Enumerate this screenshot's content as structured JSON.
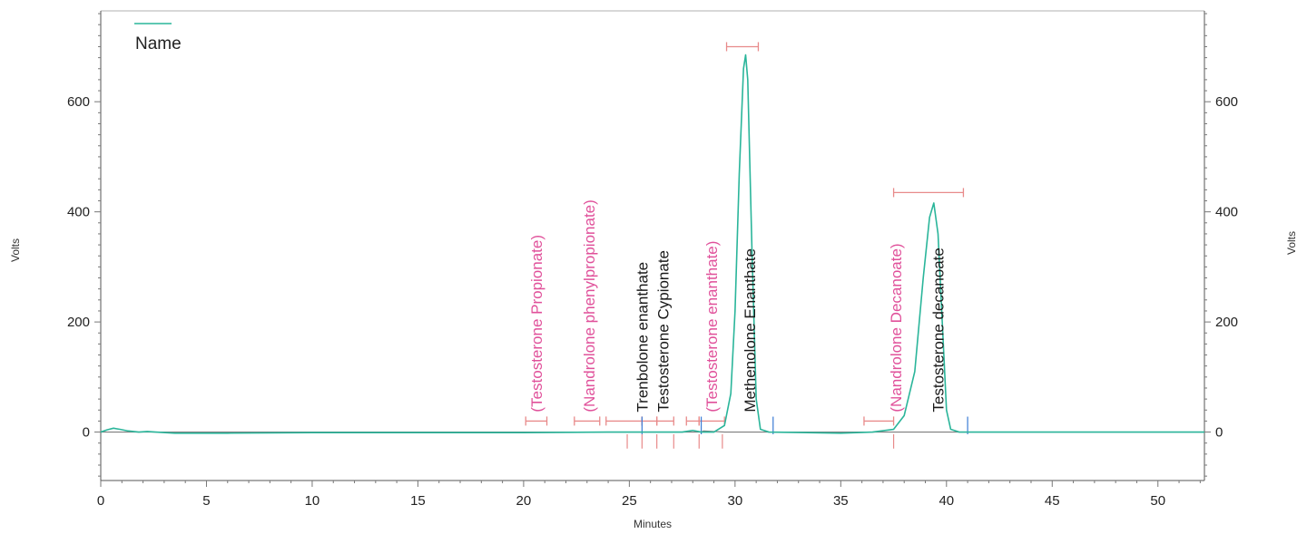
{
  "chart_data": {
    "type": "line",
    "title": "",
    "xlabel": "Minutes",
    "ylabel": "Volts",
    "ylabel_right": "Volts",
    "xlim": [
      0,
      52.2
    ],
    "ylim": [
      -88,
      765
    ],
    "x_ticks": [
      0,
      5,
      10,
      15,
      20,
      25,
      30,
      35,
      40,
      45,
      50
    ],
    "y_ticks": [
      0,
      200,
      400,
      600
    ],
    "grid": false,
    "legend": {
      "placement": "top-left",
      "entries": [
        {
          "label": "Name",
          "color": "#2ab59a"
        }
      ]
    },
    "series": [
      {
        "name": "Name",
        "color": "#2ab59a",
        "points": [
          [
            0.0,
            0
          ],
          [
            0.3,
            4
          ],
          [
            0.6,
            7
          ],
          [
            0.9,
            5
          ],
          [
            1.3,
            2
          ],
          [
            1.8,
            0
          ],
          [
            2.2,
            1
          ],
          [
            2.6,
            0
          ],
          [
            3.5,
            -2
          ],
          [
            6,
            -2
          ],
          [
            10,
            -1
          ],
          [
            15,
            -1
          ],
          [
            20,
            -1
          ],
          [
            24,
            0
          ],
          [
            27.5,
            0
          ],
          [
            28.0,
            3
          ],
          [
            28.4,
            0
          ],
          [
            29.0,
            0
          ],
          [
            29.5,
            12
          ],
          [
            29.8,
            70
          ],
          [
            30.0,
            220
          ],
          [
            30.2,
            470
          ],
          [
            30.4,
            660
          ],
          [
            30.5,
            685
          ],
          [
            30.6,
            640
          ],
          [
            30.8,
            330
          ],
          [
            31.0,
            60
          ],
          [
            31.2,
            5
          ],
          [
            31.6,
            0
          ],
          [
            35,
            -2
          ],
          [
            36.5,
            0
          ],
          [
            37.5,
            5
          ],
          [
            38.0,
            30
          ],
          [
            38.5,
            110
          ],
          [
            38.9,
            280
          ],
          [
            39.2,
            390
          ],
          [
            39.4,
            416
          ],
          [
            39.6,
            360
          ],
          [
            39.8,
            200
          ],
          [
            40.0,
            40
          ],
          [
            40.2,
            5
          ],
          [
            40.6,
            0
          ],
          [
            45,
            0
          ],
          [
            52.2,
            0
          ]
        ]
      }
    ],
    "secondary_series": [
      {
        "name": "",
        "color": "#7d7d7d",
        "points": [
          [
            0.0,
            0
          ],
          [
            28.4,
            0
          ],
          [
            28.5,
            2
          ],
          [
            29.5,
            0
          ],
          [
            52.2,
            0
          ]
        ]
      }
    ],
    "annotations": [
      {
        "text": "(Testosterone Propionate)",
        "x": 20.6,
        "color": "#e0509a"
      },
      {
        "text": "(Nandrolone phenylpropionate)",
        "x": 23.1,
        "color": "#e0509a"
      },
      {
        "text": "Trenbolone enanthate",
        "x": 25.6,
        "color": "#1a1a1a"
      },
      {
        "text": "Testosterone Cypionate",
        "x": 26.6,
        "color": "#1a1a1a"
      },
      {
        "text": "(Testosterone enanthate)",
        "x": 28.9,
        "color": "#e0509a"
      },
      {
        "text": "Methenolone Enanthate",
        "x": 30.7,
        "color": "#1a1a1a"
      },
      {
        "text": "(Nandrolone Decanoate)",
        "x": 37.6,
        "color": "#e0509a"
      },
      {
        "text": "Testosterone decanoate",
        "x": 39.6,
        "color": "#1a1a1a"
      }
    ],
    "integration_ranges": [
      {
        "start": 20.1,
        "end": 21.1,
        "y": 20
      },
      {
        "start": 22.4,
        "end": 23.6,
        "y": 20
      },
      {
        "start": 23.9,
        "end": 25.6,
        "y": 20
      },
      {
        "start": 25.6,
        "end": 26.3,
        "y": 20
      },
      {
        "start": 26.3,
        "end": 27.1,
        "y": 20
      },
      {
        "start": 27.7,
        "end": 28.3,
        "y": 20
      },
      {
        "start": 28.3,
        "end": 29.5,
        "y": 20
      },
      {
        "start": 29.6,
        "end": 31.1,
        "y": 700
      },
      {
        "start": 36.1,
        "end": 37.5,
        "y": 20
      },
      {
        "start": 37.5,
        "end": 40.8,
        "y": 435
      }
    ],
    "baseline_markers": [
      24.9,
      25.6,
      26.3,
      27.1,
      28.3,
      29.4,
      37.5
    ],
    "event_markers": [
      {
        "x": 25.6,
        "color": "#3a7bd5"
      },
      {
        "x": 28.4,
        "color": "#3a7bd5"
      },
      {
        "x": 31.8,
        "color": "#3a7bd5"
      },
      {
        "x": 41.0,
        "color": "#3a7bd5"
      }
    ]
  }
}
